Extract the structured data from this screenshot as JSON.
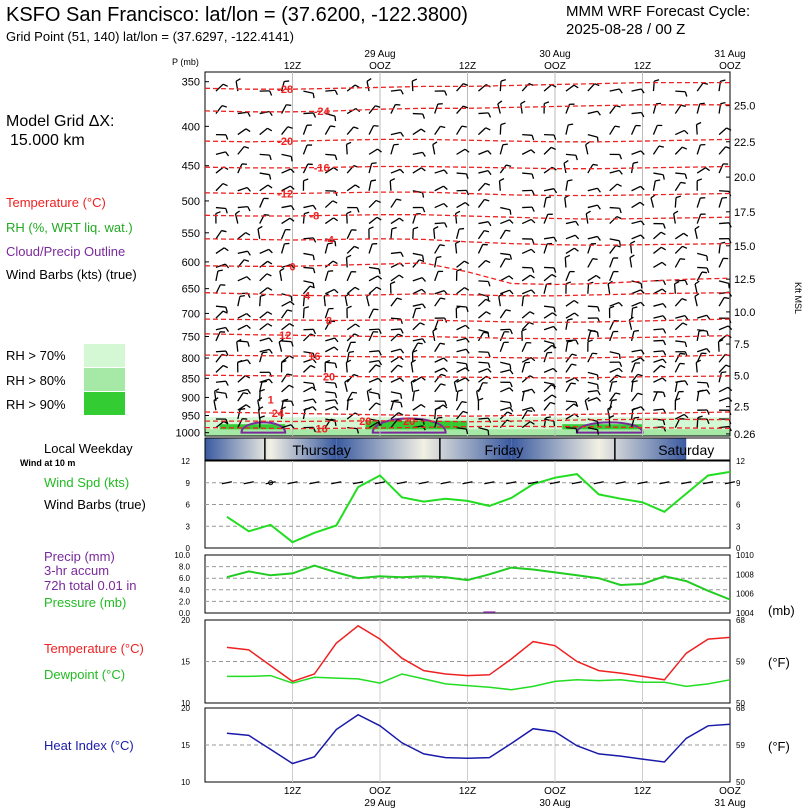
{
  "header": {
    "station_title": "KSFO San Francisco:  lat/lon = (37.6200, -122.3800)",
    "grid_point": "Grid Point (51, 140) lat/lon = (37.6297, -122.4141)",
    "cycle_line1": "MMM WRF Forecast Cycle:",
    "cycle_line2": "2025-08-28 / 00  Z"
  },
  "model": {
    "grid_label": "Model Grid ΔX:",
    "grid_value": "15.000 km"
  },
  "upper_legend": {
    "temperature": "Temperature (°C)",
    "rh": "RH (%, WRT liq. wat.)",
    "cloud": "Cloud/Precip Outline",
    "wind": "Wind Barbs (kts) (true)"
  },
  "rh_key": [
    "RH > 70%",
    "RH > 80%",
    "RH > 90%"
  ],
  "colors": {
    "temp": "#ee2222",
    "rh70": "#d4f7d4",
    "rh80": "#a6e8a6",
    "rh90": "#33cc33",
    "cloud": "#7a2a9a",
    "wind": "#22dd22",
    "pressure": "#22cc22",
    "dewpoint": "#22dd22",
    "temperature": "#ee2222",
    "heat_index": "#1a1aaa"
  },
  "time_axis": {
    "top_tick_labels": [
      "12Z",
      "OOZ",
      "12Z",
      "OOZ",
      "12Z",
      "OOZ"
    ],
    "top_date_labels": [
      "29 Aug",
      "30 Aug",
      "31 Aug"
    ],
    "bottom_tick_labels": [
      "12Z",
      "OOZ",
      "12Z",
      "OOZ",
      "12Z",
      "OOZ"
    ],
    "bottom_date_labels": [
      "29 Aug",
      "30 Aug",
      "31 Aug"
    ]
  },
  "weekday_bar": {
    "label": "Local Weekday",
    "wind_note": "Wind at 10 m",
    "days": [
      "Thursday",
      "Friday",
      "Saturday"
    ]
  },
  "chart_data": [
    {
      "type": "line",
      "name": "upper-air-cross-section",
      "yaxis_title": "P (mb)",
      "pressure_levels": [
        350,
        400,
        450,
        500,
        550,
        600,
        650,
        700,
        750,
        800,
        850,
        900,
        950,
        1000
      ],
      "ylim": [
        1000,
        350
      ],
      "right_axis_label": "Kft MSL",
      "right_axis_ticks": [
        "25.0",
        "22.5",
        "20.0",
        "17.5",
        "15.0",
        "12.5",
        "10.0",
        "7.5",
        "5.0",
        "2.5",
        "0.26"
      ],
      "right_axis_values": [
        25.0,
        22.5,
        20.0,
        17.5,
        15.0,
        12.5,
        10.0,
        7.5,
        5.0,
        2.5,
        0.26
      ],
      "isotherms": [
        {
          "label": "-28",
          "p": [
            357,
            358,
            358,
            357,
            356,
            355,
            355,
            354,
            353,
            352,
            351,
            351,
            351
          ],
          "label_at": 11
        },
        {
          "label": "-24",
          "p": [
            382,
            383,
            383,
            382,
            380,
            379,
            379,
            378,
            377,
            376,
            375,
            375,
            375
          ],
          "label_at": 16
        },
        {
          "label": "-20",
          "p": [
            418,
            419,
            418,
            417,
            416,
            416,
            417,
            418,
            419,
            419,
            418,
            417,
            416
          ],
          "label_at": 11
        },
        {
          "label": "-16",
          "p": [
            452,
            453,
            453,
            452,
            451,
            451,
            452,
            453,
            454,
            454,
            453,
            452,
            451
          ],
          "label_at": 16
        },
        {
          "label": "-12",
          "p": [
            488,
            489,
            489,
            488,
            487,
            487,
            489,
            491,
            492,
            492,
            491,
            490,
            489
          ],
          "label_at": 11
        },
        {
          "label": "-8",
          "p": [
            522,
            523,
            523,
            522,
            521,
            521,
            523,
            525,
            527,
            528,
            527,
            526,
            525
          ],
          "label_at": 15
        },
        {
          "label": "-4",
          "p": [
            560,
            561,
            562,
            561,
            560,
            561,
            565,
            568,
            570,
            571,
            570,
            569,
            568
          ],
          "label_at": 17
        },
        {
          "label": "0",
          "p": [
            607,
            608,
            608,
            606,
            604,
            602,
            618,
            640,
            642,
            640,
            636,
            632,
            630
          ],
          "label_at": 12
        },
        {
          "label": "4",
          "p": [
            658,
            660,
            663,
            664,
            662,
            660,
            662,
            664,
            664,
            662,
            660,
            659,
            658
          ],
          "label_at": 14
        },
        {
          "label": "8",
          "p": [
            712,
            713,
            714,
            715,
            714,
            714,
            716,
            718,
            719,
            718,
            716,
            714,
            712
          ],
          "label_at": 17
        },
        {
          "label": "12",
          "p": [
            744,
            746,
            747,
            749,
            750,
            750,
            752,
            754,
            755,
            754,
            752,
            750,
            748
          ],
          "label_at": 11
        },
        {
          "label": "16",
          "p": [
            793,
            794,
            795,
            796,
            797,
            797,
            798,
            799,
            800,
            799,
            797,
            795,
            793
          ],
          "label_at": 15
        },
        {
          "label": "20",
          "p": [
            842,
            843,
            844,
            845,
            846,
            846,
            847,
            848,
            849,
            848,
            846,
            845,
            844
          ],
          "label_at": 17
        },
        {
          "label": "24",
          "p": [
            940,
            942,
            944,
            946,
            948,
            950,
            952,
            950,
            948,
            946,
            944,
            942,
            940
          ],
          "label_at": 10
        },
        {
          "label": "16",
          "p": [
            985,
            986,
            988,
            987,
            986,
            984,
            982,
            981,
            982,
            983,
            985,
            986,
            987
          ],
          "label_at": 16
        },
        {
          "label": "20",
          "p": [
            966,
            966,
            967,
            966,
            965,
            966,
            968,
            966,
            964,
            962,
            961,
            961,
            962
          ],
          "label_at": 22
        }
      ],
      "extra_labels": [
        {
          "text": "20",
          "x": 28,
          "p": 965
        },
        {
          "text": "1",
          "x": 9,
          "p": 905
        }
      ],
      "rh_patches": [
        {
          "level": "rh70",
          "x0": 0,
          "x1": 72,
          "p_top": 955
        },
        {
          "level": "rh90",
          "x0": 2,
          "x1": 11,
          "p_top": 975
        },
        {
          "level": "rh90",
          "x0": 22,
          "x1": 36,
          "p_top": 965
        },
        {
          "level": "rh90",
          "x0": 49,
          "x1": 60,
          "p_top": 975
        },
        {
          "level": "rh80",
          "x0": 0,
          "x1": 72,
          "p_top": 990
        }
      ],
      "cloud_outlines": [
        {
          "x0": 5,
          "x1": 11,
          "p_top": 960,
          "p_bot": 1000
        },
        {
          "x0": 23,
          "x1": 33,
          "p_top": 945,
          "p_bot": 1000
        },
        {
          "x0": 51,
          "x1": 60,
          "p_top": 960,
          "p_bot": 1000
        }
      ],
      "x_hours": [
        0,
        3,
        6,
        9,
        12,
        15,
        18,
        21,
        24,
        27,
        30,
        33,
        36,
        39,
        42,
        45,
        48,
        51,
        54,
        57,
        60,
        63,
        66,
        69,
        72
      ]
    },
    {
      "type": "line",
      "name": "surface-wind-speed",
      "legend": [
        "Wind Spd (kts)",
        "Wind Barbs (true)"
      ],
      "x_hours": [
        3,
        6,
        9,
        12,
        15,
        18,
        21,
        24,
        27,
        30,
        33,
        36,
        39,
        42,
        45,
        48,
        51,
        54,
        57,
        60,
        63,
        66,
        69,
        72
      ],
      "values": [
        4.3,
        2.3,
        3.2,
        0.8,
        2.1,
        3.1,
        8.4,
        10.0,
        7.0,
        6.4,
        6.8,
        6.5,
        5.8,
        6.9,
        8.8,
        9.7,
        10.2,
        7.4,
        6.8,
        6.3,
        5.0,
        7.5,
        10.0,
        10.5
      ],
      "ylim": [
        0,
        12
      ],
      "yticks": [
        0,
        3,
        6,
        9,
        12
      ]
    },
    {
      "type": "line",
      "name": "precip-pressure",
      "legend": [
        "Precip (mm)",
        "3-hr accum",
        "72h total 0.01 in",
        "Pressure (mb)"
      ],
      "x_hours": [
        3,
        6,
        9,
        12,
        15,
        18,
        21,
        24,
        27,
        30,
        33,
        36,
        39,
        42,
        45,
        48,
        51,
        54,
        57,
        60,
        63,
        66,
        69,
        72
      ],
      "pressure_values": [
        1007.7,
        1008.3,
        1007.9,
        1008.1,
        1008.9,
        1008.2,
        1007.6,
        1007.8,
        1007.7,
        1007.8,
        1007.7,
        1007.4,
        1008.0,
        1008.7,
        1008.5,
        1008.2,
        1007.9,
        1007.6,
        1006.9,
        1007.0,
        1007.8,
        1007.3,
        1006.3,
        1005.4
      ],
      "precip_values": [
        0,
        0,
        0,
        0,
        0,
        0,
        0,
        0,
        0,
        0,
        0,
        0,
        0.1,
        0,
        0,
        0,
        0,
        0,
        0,
        0,
        0,
        0,
        0,
        0
      ],
      "precip_ylim": [
        0,
        10
      ],
      "precip_yticks": [
        "0.0",
        "2.0",
        "4.0",
        "6.0",
        "8.0",
        "10.0"
      ],
      "pressure_ylim": [
        1004,
        1010
      ],
      "pressure_yticks": [
        "1004",
        "1006",
        "1008",
        "1010"
      ],
      "right_unit": "(mb)"
    },
    {
      "type": "line",
      "name": "temperature-dewpoint",
      "legend": [
        "Temperature (°C)",
        "Dewpoint (°C)"
      ],
      "x_hours": [
        3,
        6,
        9,
        12,
        15,
        18,
        21,
        24,
        27,
        30,
        33,
        36,
        39,
        42,
        45,
        48,
        51,
        54,
        57,
        60,
        63,
        66,
        69,
        72
      ],
      "temperature": [
        16.7,
        16.4,
        14.5,
        12.6,
        13.5,
        17.2,
        19.3,
        17.7,
        15.4,
        13.9,
        13.5,
        13.3,
        13.4,
        15.3,
        17.4,
        16.9,
        15.0,
        13.9,
        13.6,
        13.2,
        12.8,
        16.0,
        17.7,
        17.9
      ],
      "dewpoint": [
        13.2,
        13.2,
        13.3,
        12.4,
        13.1,
        13.0,
        12.9,
        12.4,
        13.5,
        12.9,
        12.3,
        12.1,
        11.9,
        11.6,
        12.0,
        12.6,
        12.8,
        12.7,
        12.8,
        12.5,
        12.5,
        12.0,
        12.3,
        12.8
      ],
      "ylim": [
        10,
        20
      ],
      "yticks": [
        "10",
        "15",
        "20"
      ],
      "right_ticks": [
        "50",
        "59",
        "68"
      ],
      "right_unit": "(°F)"
    },
    {
      "type": "line",
      "name": "heat-index",
      "legend": [
        "Heat Index (°C)"
      ],
      "x_hours": [
        3,
        6,
        9,
        12,
        15,
        18,
        21,
        24,
        27,
        30,
        33,
        36,
        39,
        42,
        45,
        48,
        51,
        54,
        57,
        60,
        63,
        66,
        69,
        72
      ],
      "values": [
        16.6,
        16.3,
        14.4,
        12.5,
        13.4,
        17.1,
        19.1,
        17.6,
        15.3,
        13.8,
        13.3,
        13.2,
        13.3,
        15.2,
        17.2,
        16.8,
        14.9,
        13.8,
        13.5,
        13.1,
        12.7,
        15.9,
        17.6,
        17.8
      ],
      "ylim": [
        10,
        20
      ],
      "yticks": [
        "10",
        "15",
        "20"
      ],
      "right_ticks": [
        "50",
        "59",
        "68"
      ],
      "right_unit": "(°F)"
    }
  ]
}
